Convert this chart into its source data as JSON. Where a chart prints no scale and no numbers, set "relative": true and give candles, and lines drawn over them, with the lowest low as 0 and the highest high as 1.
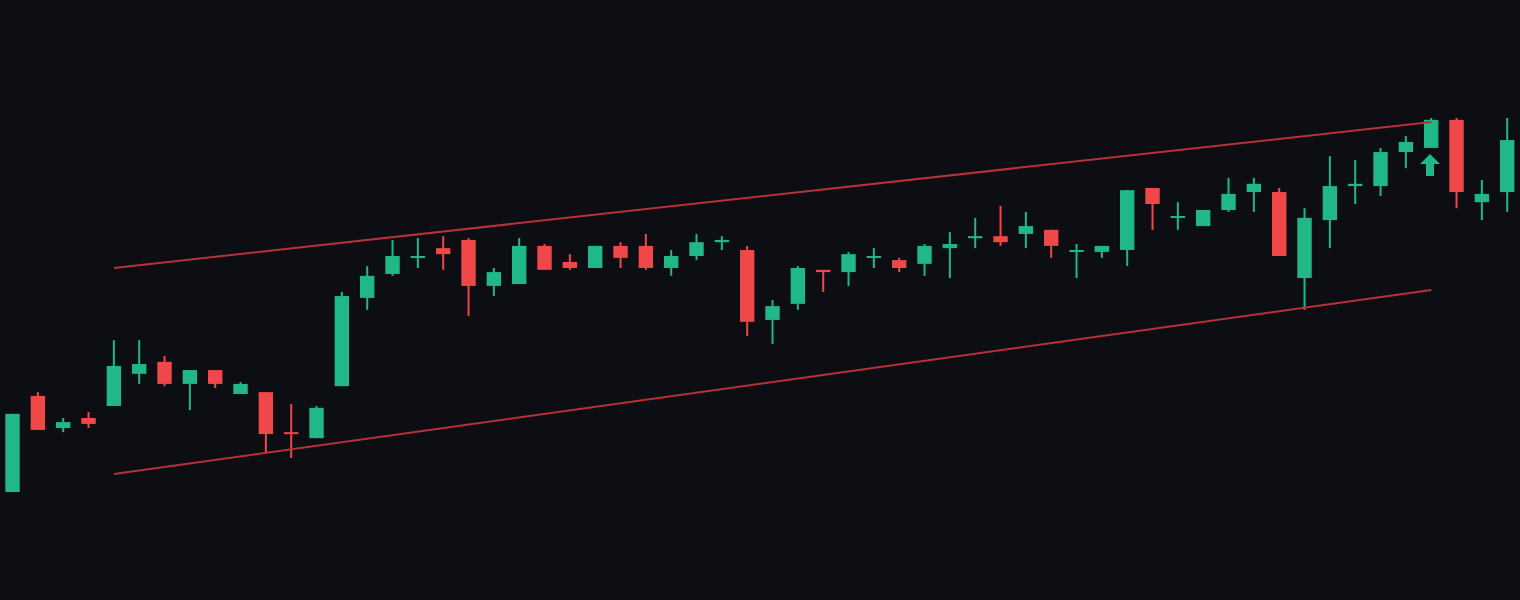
{
  "chart_data": {
    "type": "candlestick",
    "relative": true,
    "categories": [
      null,
      null,
      null,
      null,
      null,
      null,
      null,
      null,
      null,
      null,
      null,
      null,
      null,
      null,
      null,
      null,
      null,
      null,
      null,
      null,
      null,
      null,
      null,
      null,
      null,
      null,
      null,
      null,
      null,
      null,
      null,
      null,
      null,
      null,
      null,
      null,
      null,
      null,
      null,
      null,
      null,
      null,
      null,
      null,
      null,
      null,
      null,
      null,
      null,
      null,
      null,
      null,
      null,
      null,
      null,
      null,
      null,
      null,
      null,
      null
    ],
    "ohlc": [
      [
        0,
        0.209,
        0,
        0.209
      ],
      [
        0.257,
        0.267,
        0.166,
        0.166
      ],
      [
        0.171,
        0.198,
        0.16,
        0.187
      ],
      [
        0.198,
        0.214,
        0.171,
        0.182
      ],
      [
        0.23,
        0.406,
        0.23,
        0.337
      ],
      [
        0.316,
        0.406,
        0.289,
        0.342
      ],
      [
        0.348,
        0.364,
        0.283,
        0.289
      ],
      [
        0.289,
        0.326,
        0.219,
        0.326
      ],
      [
        0.326,
        0.326,
        0.278,
        0.289
      ],
      [
        0.262,
        0.294,
        0.262,
        0.289
      ],
      [
        0.267,
        0.267,
        0.107,
        0.155
      ],
      [
        0.16,
        0.235,
        0.091,
        0.155
      ],
      [
        0.144,
        0.23,
        0.144,
        0.225
      ],
      [
        0.283,
        0.535,
        0.283,
        0.524
      ],
      [
        0.519,
        0.604,
        0.487,
        0.578
      ],
      [
        0.583,
        0.674,
        0.578,
        0.631
      ],
      [
        0.626,
        0.679,
        0.599,
        0.631
      ],
      [
        0.652,
        0.684,
        0.594,
        0.636
      ],
      [
        0.674,
        0.679,
        0.471,
        0.551
      ],
      [
        0.551,
        0.599,
        0.524,
        0.588
      ],
      [
        0.556,
        0.679,
        0.556,
        0.658
      ],
      [
        0.658,
        0.663,
        0.594,
        0.594
      ],
      [
        0.615,
        0.636,
        0.594,
        0.599
      ],
      [
        0.599,
        0.658,
        0.599,
        0.658
      ],
      [
        0.658,
        0.668,
        0.599,
        0.626
      ],
      [
        0.658,
        0.69,
        0.594,
        0.599
      ],
      [
        0.599,
        0.647,
        0.578,
        0.631
      ],
      [
        0.631,
        0.69,
        0.62,
        0.668
      ],
      [
        0.668,
        0.684,
        0.647,
        0.674
      ],
      [
        0.647,
        0.658,
        0.417,
        0.455
      ],
      [
        0.46,
        0.513,
        0.396,
        0.497
      ],
      [
        0.503,
        0.604,
        0.487,
        0.599
      ],
      [
        0.594,
        0.594,
        0.535,
        0.588
      ],
      [
        0.588,
        0.642,
        0.551,
        0.636
      ],
      [
        0.626,
        0.652,
        0.599,
        0.631
      ],
      [
        0.62,
        0.626,
        0.588,
        0.599
      ],
      [
        0.61,
        0.663,
        0.578,
        0.658
      ],
      [
        0.652,
        0.695,
        0.572,
        0.663
      ],
      [
        0.679,
        0.733,
        0.652,
        0.684
      ],
      [
        0.684,
        0.765,
        0.658,
        0.668
      ],
      [
        0.69,
        0.749,
        0.652,
        0.711
      ],
      [
        0.701,
        0.701,
        0.626,
        0.658
      ],
      [
        0.642,
        0.663,
        0.572,
        0.647
      ],
      [
        0.642,
        0.658,
        0.626,
        0.658
      ],
      [
        0.647,
        0.807,
        0.604,
        0.807
      ],
      [
        0.813,
        0.813,
        0.701,
        0.77
      ],
      [
        0.733,
        0.775,
        0.701,
        0.738
      ],
      [
        0.711,
        0.754,
        0.711,
        0.754
      ],
      [
        0.754,
        0.84,
        0.749,
        0.797
      ],
      [
        0.802,
        0.84,
        0.749,
        0.824
      ],
      [
        0.802,
        0.813,
        0.631,
        0.631
      ],
      [
        0.572,
        0.759,
        0.487,
        0.733
      ],
      [
        0.727,
        0.898,
        0.652,
        0.818
      ],
      [
        0.818,
        0.888,
        0.77,
        0.824
      ],
      [
        0.818,
        0.92,
        0.791,
        0.909
      ],
      [
        0.909,
        0.952,
        0.866,
        0.936
      ],
      [
        0.92,
        1,
        0.92,
        0.995
      ],
      [
        0.995,
        1,
        0.759,
        0.802
      ],
      [
        0.775,
        0.834,
        0.727,
        0.797
      ],
      [
        0.802,
        1,
        0.749,
        0.941
      ]
    ],
    "colors": [
      "#1fb886",
      "#f04848",
      "#1fb886",
      "#f04848",
      "#1fb886",
      "#1fb886",
      "#f04848",
      "#1fb886",
      "#f04848",
      "#1fb886",
      "#f04848",
      "#f04848",
      "#1fb886",
      "#1fb886",
      "#1fb886",
      "#1fb886",
      "#1fb886",
      "#f04848",
      "#f04848",
      "#1fb886",
      "#1fb886",
      "#f04848",
      "#f04848",
      "#1fb886",
      "#f04848",
      "#f04848",
      "#1fb886",
      "#1fb886",
      "#1fb886",
      "#f04848",
      "#1fb886",
      "#1fb886",
      "#f04848",
      "#1fb886",
      "#1fb886",
      "#f04848",
      "#1fb886",
      "#1fb886",
      "#1fb886",
      "#f04848",
      "#1fb886",
      "#f04848",
      "#1fb886",
      "#1fb886",
      "#1fb886",
      "#f04848",
      "#1fb886",
      "#1fb886",
      "#1fb886",
      "#1fb886",
      "#f04848",
      "#1fb886",
      "#1fb886",
      "#1fb886",
      "#1fb886",
      "#1fb886",
      "#1fb886",
      "#f04848",
      "#1fb886",
      "#1fb886"
    ],
    "series": [
      {
        "type": "line",
        "color": "#b8303a",
        "values": [
          null,
          null,
          null,
          null,
          0.599,
          null,
          null,
          null,
          null,
          null,
          null,
          null,
          null,
          null,
          null,
          null,
          null,
          null,
          null,
          null,
          null,
          null,
          null,
          null,
          null,
          null,
          null,
          null,
          null,
          null,
          null,
          null,
          null,
          null,
          null,
          null,
          null,
          null,
          null,
          null,
          null,
          null,
          null,
          null,
          null,
          null,
          null,
          null,
          null,
          null,
          null,
          null,
          null,
          null,
          null,
          null,
          0.989,
          null,
          null,
          null
        ]
      },
      {
        "type": "line",
        "color": "#b8303a",
        "values": [
          null,
          null,
          null,
          null,
          0.048,
          null,
          null,
          null,
          null,
          null,
          null,
          null,
          null,
          null,
          null,
          null,
          null,
          null,
          null,
          null,
          null,
          null,
          null,
          null,
          null,
          null,
          null,
          null,
          null,
          null,
          null,
          null,
          null,
          null,
          null,
          null,
          null,
          null,
          null,
          null,
          null,
          null,
          null,
          null,
          null,
          null,
          null,
          null,
          null,
          null,
          null,
          null,
          null,
          null,
          null,
          null,
          0.54,
          null,
          null,
          null
        ]
      }
    ]
  }
}
